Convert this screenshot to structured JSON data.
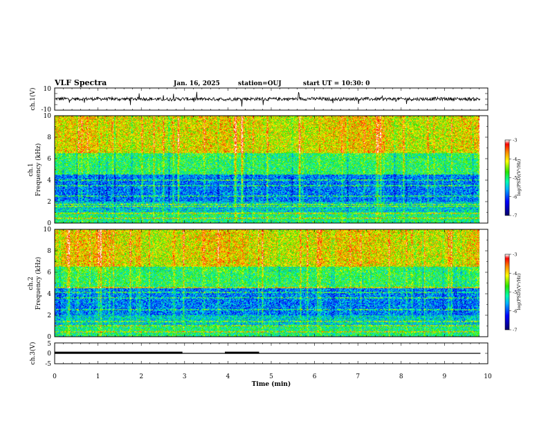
{
  "header": {
    "title": "VLF Spectra",
    "date": "Jan. 16, 2025",
    "station": "station=OUJ",
    "start": "start UT =  10:30: 0"
  },
  "colors": {
    "waveform": "#000000",
    "colormap": [
      "#08006e",
      "#0000ff",
      "#00b4ff",
      "#00ffb0",
      "#29e600",
      "#ffff00",
      "#ff8c00",
      "#ff0000",
      "#ffffff"
    ]
  },
  "chart_data": [
    {
      "type": "line",
      "panel": "ch1-waveform",
      "ylabel": "ch.1(V)",
      "xlim": [
        0,
        10
      ],
      "ylim": [
        -10,
        10
      ],
      "yticks": [
        "10",
        "-10"
      ],
      "x_data_end": 9.83,
      "mean": 0,
      "x": [
        0,
        0.5,
        1,
        1.5,
        2,
        2.5,
        3,
        3.5,
        4,
        4.5,
        5,
        5.5,
        6,
        6.5,
        7,
        7.5,
        8,
        8.5,
        9,
        9.5,
        9.83
      ],
      "values": [
        0.3,
        0.1,
        0.2,
        0.0,
        0.3,
        -0.2,
        0.1,
        0.0,
        -0.1,
        0.2,
        0.0,
        0.1,
        0.3,
        -0.1,
        0.2,
        0.0,
        0.1,
        0.0,
        0.2,
        0.1,
        0.0
      ],
      "spread": 3
    },
    {
      "type": "heatmap",
      "panel": "ch1-spectrogram",
      "ylabel": [
        "ch.1",
        "Frequency (kHz)"
      ],
      "xlim": [
        0,
        10
      ],
      "ylim": [
        0,
        10
      ],
      "yticks": [
        "0",
        "2",
        "4",
        "6",
        "8",
        "10"
      ],
      "x_data_end": 9.83,
      "colorbar": {
        "label": "log(PSD)(V²/Hz)",
        "range": [
          -7,
          -3
        ],
        "ticks": [
          "-3",
          "-4",
          "-5",
          "-6",
          "-7"
        ]
      },
      "line_frequencies_khz": [
        0.4,
        0.9,
        1.5,
        1.7,
        2.5,
        3.5,
        4.0
      ],
      "bands": [
        {
          "f_range": [
            0,
            1.0
          ],
          "mean_log_psd": -5.0
        },
        {
          "f_range": [
            1.0,
            2.0
          ],
          "mean_log_psd": -5.4
        },
        {
          "f_range": [
            2.0,
            4.5
          ],
          "mean_log_psd": -5.8
        },
        {
          "f_range": [
            4.5,
            6.5
          ],
          "mean_log_psd": -4.9
        },
        {
          "f_range": [
            6.5,
            10.0
          ],
          "mean_log_psd": -4.1
        }
      ]
    },
    {
      "type": "heatmap",
      "panel": "ch2-spectrogram",
      "ylabel": [
        "ch.2",
        "Frequency (kHz)"
      ],
      "xlim": [
        0,
        10
      ],
      "ylim": [
        0,
        10
      ],
      "yticks": [
        "0",
        "2",
        "4",
        "6",
        "8",
        "10"
      ],
      "x_data_end": 9.83,
      "colorbar": {
        "label": "log(PSD)(V²/Hz)",
        "range": [
          -7,
          -3
        ],
        "ticks": [
          "-3",
          "-4",
          "-5",
          "-6",
          "-7"
        ]
      },
      "line_frequencies_khz": [
        0.4,
        1.0,
        1.4,
        2.5,
        3.6,
        4.1,
        4.6
      ],
      "bands": [
        {
          "f_range": [
            0,
            1.0
          ],
          "mean_log_psd": -5.0
        },
        {
          "f_range": [
            1.0,
            2.0
          ],
          "mean_log_psd": -5.4
        },
        {
          "f_range": [
            2.0,
            4.5
          ],
          "mean_log_psd": -5.8
        },
        {
          "f_range": [
            4.5,
            6.5
          ],
          "mean_log_psd": -4.9
        },
        {
          "f_range": [
            6.5,
            10.0
          ],
          "mean_log_psd": -4.1
        }
      ]
    },
    {
      "type": "line",
      "panel": "ch3-status",
      "ylabel": "ch.3(V)",
      "xlabel": "Time (min)",
      "xlim": [
        0,
        10
      ],
      "ylim": [
        -5,
        5
      ],
      "yticks": [
        "5",
        "0",
        "-5"
      ],
      "xticks": [
        "0",
        "1",
        "2",
        "3",
        "4",
        "5",
        "6",
        "7",
        "8",
        "9",
        "10"
      ],
      "baseline": [
        {
          "x": [
            0,
            9.83
          ],
          "y": 0
        }
      ],
      "high_segments": [
        {
          "x": [
            0,
            2.95
          ],
          "y": 0.3
        },
        {
          "x": [
            3.93,
            4.72
          ],
          "y": 0.3
        }
      ]
    }
  ]
}
